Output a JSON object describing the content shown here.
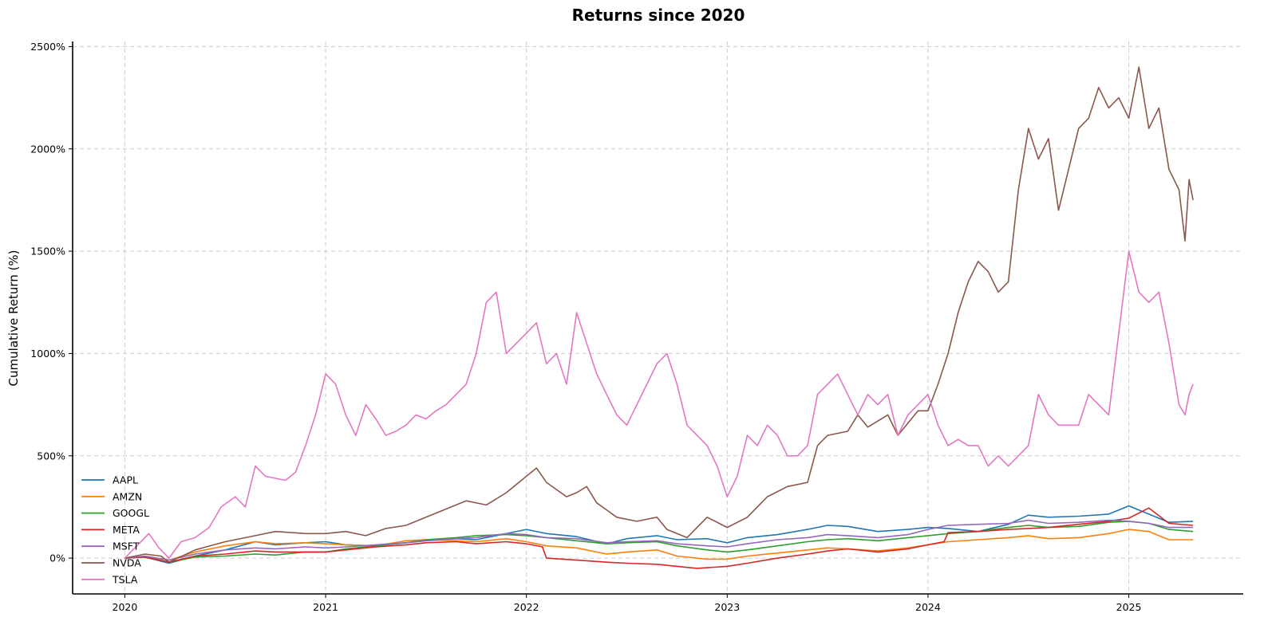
{
  "chart_data": {
    "type": "line",
    "title": "Returns since 2020",
    "xlabel": "",
    "ylabel": "Cumulative Return (%)",
    "x_ticks": [
      {
        "label": "2020",
        "value": 2020.0
      },
      {
        "label": "2021",
        "value": 2021.0
      },
      {
        "label": "2022",
        "value": 2022.0
      },
      {
        "label": "2023",
        "value": 2023.0
      },
      {
        "label": "2024",
        "value": 2024.0
      },
      {
        "label": "2025",
        "value": 2025.0
      }
    ],
    "y_ticks": [
      {
        "label": "0%",
        "value": 0
      },
      {
        "label": "500%",
        "value": 500
      },
      {
        "label": "1000%",
        "value": 1000
      },
      {
        "label": "1500%",
        "value": 1500
      },
      {
        "label": "2000%",
        "value": 2000
      },
      {
        "label": "2500%",
        "value": 2500
      }
    ],
    "xlim": [
      2019.74,
      2025.57
    ],
    "ylim": [
      -175,
      2525
    ],
    "grid": true,
    "legend_position": "lower-left",
    "series": [
      {
        "name": "AAPL",
        "color": "#1f77b4",
        "x": [
          2020.0,
          2020.1,
          2020.22,
          2020.35,
          2020.5,
          2020.65,
          2020.75,
          2020.9,
          2021.0,
          2021.1,
          2021.25,
          2021.4,
          2021.5,
          2021.65,
          2021.75,
          2021.9,
          2022.0,
          2022.1,
          2022.25,
          2022.4,
          2022.5,
          2022.65,
          2022.75,
          2022.9,
          2023.0,
          2023.1,
          2023.25,
          2023.4,
          2023.5,
          2023.6,
          2023.75,
          2023.9,
          2024.0,
          2024.1,
          2024.25,
          2024.4,
          2024.5,
          2024.6,
          2024.75,
          2024.9,
          2025.0,
          2025.1,
          2025.2,
          2025.32
        ],
        "y": [
          0,
          5,
          -25,
          10,
          40,
          80,
          65,
          75,
          80,
          65,
          60,
          75,
          85,
          95,
          90,
          120,
          140,
          120,
          105,
          70,
          95,
          110,
          90,
          95,
          75,
          100,
          115,
          140,
          160,
          155,
          130,
          140,
          150,
          145,
          130,
          165,
          210,
          200,
          205,
          215,
          255,
          215,
          175,
          180
        ]
      },
      {
        "name": "AMZN",
        "color": "#ff7f0e",
        "x": [
          2020.0,
          2020.1,
          2020.22,
          2020.35,
          2020.5,
          2020.65,
          2020.75,
          2020.9,
          2021.0,
          2021.1,
          2021.25,
          2021.4,
          2021.5,
          2021.65,
          2021.75,
          2021.9,
          2022.0,
          2022.1,
          2022.25,
          2022.4,
          2022.5,
          2022.65,
          2022.75,
          2022.9,
          2023.0,
          2023.1,
          2023.25,
          2023.4,
          2023.5,
          2023.6,
          2023.75,
          2023.9,
          2024.0,
          2024.1,
          2024.25,
          2024.4,
          2024.5,
          2024.6,
          2024.75,
          2024.9,
          2025.0,
          2025.1,
          2025.2,
          2025.32
        ],
        "y": [
          0,
          5,
          -10,
          30,
          60,
          80,
          70,
          75,
          70,
          65,
          60,
          85,
          90,
          85,
          80,
          95,
          80,
          60,
          50,
          20,
          30,
          40,
          10,
          -5,
          -5,
          10,
          25,
          40,
          50,
          45,
          35,
          50,
          65,
          80,
          90,
          100,
          110,
          95,
          100,
          120,
          140,
          130,
          90,
          90
        ]
      },
      {
        "name": "GOOGL",
        "color": "#2ca02c",
        "x": [
          2020.0,
          2020.1,
          2020.22,
          2020.35,
          2020.5,
          2020.65,
          2020.75,
          2020.9,
          2021.0,
          2021.1,
          2021.25,
          2021.4,
          2021.5,
          2021.65,
          2021.75,
          2021.9,
          2022.0,
          2022.1,
          2022.25,
          2022.4,
          2022.5,
          2022.65,
          2022.75,
          2022.9,
          2023.0,
          2023.1,
          2023.25,
          2023.4,
          2023.5,
          2023.6,
          2023.75,
          2023.9,
          2024.0,
          2024.1,
          2024.25,
          2024.4,
          2024.5,
          2024.6,
          2024.75,
          2024.9,
          2025.0,
          2025.1,
          2025.2,
          2025.32
        ],
        "y": [
          0,
          5,
          -20,
          5,
          10,
          20,
          15,
          30,
          30,
          45,
          60,
          75,
          90,
          100,
          110,
          115,
          110,
          100,
          85,
          70,
          75,
          80,
          60,
          40,
          30,
          40,
          60,
          80,
          90,
          95,
          85,
          100,
          110,
          120,
          130,
          150,
          160,
          150,
          155,
          175,
          180,
          170,
          140,
          130
        ]
      },
      {
        "name": "META",
        "color": "#d62728",
        "x": [
          2020.0,
          2020.1,
          2020.22,
          2020.35,
          2020.5,
          2020.65,
          2020.75,
          2020.9,
          2021.0,
          2021.1,
          2021.25,
          2021.4,
          2021.5,
          2021.65,
          2021.75,
          2021.9,
          2022.0,
          2022.08,
          2022.1,
          2022.25,
          2022.4,
          2022.5,
          2022.65,
          2022.75,
          2022.85,
          2023.0,
          2023.1,
          2023.25,
          2023.4,
          2023.5,
          2023.6,
          2023.75,
          2023.9,
          2024.0,
          2024.08,
          2024.1,
          2024.25,
          2024.4,
          2024.5,
          2024.6,
          2024.75,
          2024.9,
          2025.0,
          2025.1,
          2025.2,
          2025.32
        ],
        "y": [
          0,
          5,
          -20,
          10,
          20,
          35,
          30,
          30,
          30,
          40,
          55,
          65,
          75,
          80,
          70,
          80,
          70,
          55,
          0,
          -10,
          -20,
          -25,
          -30,
          -40,
          -50,
          -40,
          -25,
          0,
          20,
          35,
          45,
          30,
          45,
          65,
          80,
          125,
          130,
          140,
          145,
          150,
          165,
          180,
          195,
          245,
          170,
          160
        ]
      },
      {
        "name": "MSFT",
        "color": "#9467bd",
        "x": [
          2020.0,
          2020.1,
          2020.22,
          2020.35,
          2020.5,
          2020.65,
          2020.75,
          2020.9,
          2021.0,
          2021.1,
          2021.25,
          2021.4,
          2021.5,
          2021.65,
          2021.75,
          2021.9,
          2022.0,
          2022.1,
          2022.25,
          2022.4,
          2022.5,
          2022.65,
          2022.75,
          2022.9,
          2023.0,
          2023.1,
          2023.25,
          2023.4,
          2023.5,
          2023.6,
          2023.75,
          2023.9,
          2024.0,
          2024.1,
          2024.25,
          2024.4,
          2024.5,
          2024.6,
          2024.75,
          2024.9,
          2025.0,
          2025.1,
          2025.2,
          2025.32
        ],
        "y": [
          0,
          10,
          -10,
          20,
          40,
          50,
          45,
          55,
          50,
          55,
          65,
          75,
          85,
          95,
          100,
          120,
          115,
          100,
          95,
          75,
          80,
          85,
          70,
          60,
          55,
          70,
          90,
          100,
          115,
          110,
          100,
          115,
          140,
          160,
          165,
          170,
          185,
          170,
          175,
          185,
          180,
          170,
          150,
          150
        ]
      },
      {
        "name": "NVDA",
        "color": "#8c564b",
        "x": [
          2020.0,
          2020.1,
          2020.18,
          2020.22,
          2020.35,
          2020.5,
          2020.65,
          2020.75,
          2020.9,
          2021.0,
          2021.1,
          2021.2,
          2021.3,
          2021.4,
          2021.5,
          2021.6,
          2021.7,
          2021.8,
          2021.9,
          2022.0,
          2022.05,
          2022.1,
          2022.2,
          2022.25,
          2022.3,
          2022.35,
          2022.45,
          2022.55,
          2022.65,
          2022.7,
          2022.8,
          2022.9,
          2023.0,
          2023.1,
          2023.2,
          2023.3,
          2023.4,
          2023.45,
          2023.5,
          2023.6,
          2023.65,
          2023.7,
          2023.8,
          2023.85,
          2023.95,
          2024.0,
          2024.05,
          2024.1,
          2024.15,
          2024.2,
          2024.25,
          2024.3,
          2024.35,
          2024.4,
          2024.45,
          2024.5,
          2024.55,
          2024.6,
          2024.65,
          2024.7,
          2024.75,
          2024.8,
          2024.85,
          2024.9,
          2024.95,
          2025.0,
          2025.05,
          2025.1,
          2025.15,
          2025.2,
          2025.25,
          2025.28,
          2025.3,
          2025.32
        ],
        "y": [
          0,
          20,
          10,
          -20,
          40,
          80,
          110,
          130,
          120,
          120,
          130,
          110,
          145,
          160,
          200,
          240,
          280,
          260,
          320,
          400,
          440,
          370,
          300,
          320,
          350,
          270,
          200,
          180,
          200,
          140,
          100,
          200,
          150,
          200,
          300,
          350,
          370,
          550,
          600,
          620,
          700,
          640,
          700,
          600,
          720,
          720,
          850,
          1000,
          1200,
          1350,
          1450,
          1400,
          1300,
          1350,
          1800,
          2100,
          1950,
          2050,
          1700,
          1900,
          2100,
          2150,
          2300,
          2200,
          2250,
          2150,
          2400,
          2100,
          2200,
          1900,
          1800,
          1550,
          1850,
          1750
        ]
      },
      {
        "name": "TSLA",
        "color": "#e377c2",
        "x": [
          2020.0,
          2020.05,
          2020.12,
          2020.17,
          2020.22,
          2020.28,
          2020.35,
          2020.42,
          2020.48,
          2020.55,
          2020.6,
          2020.65,
          2020.7,
          2020.8,
          2020.85,
          2020.9,
          2020.95,
          2021.0,
          2021.05,
          2021.1,
          2021.15,
          2021.2,
          2021.25,
          2021.3,
          2021.35,
          2021.4,
          2021.45,
          2021.5,
          2021.55,
          2021.6,
          2021.65,
          2021.7,
          2021.75,
          2021.8,
          2021.85,
          2021.9,
          2022.0,
          2022.05,
          2022.1,
          2022.15,
          2022.2,
          2022.25,
          2022.3,
          2022.35,
          2022.4,
          2022.45,
          2022.5,
          2022.55,
          2022.6,
          2022.65,
          2022.7,
          2022.75,
          2022.8,
          2022.85,
          2022.9,
          2022.95,
          2023.0,
          2023.05,
          2023.1,
          2023.15,
          2023.2,
          2023.25,
          2023.3,
          2023.35,
          2023.4,
          2023.45,
          2023.5,
          2023.55,
          2023.6,
          2023.65,
          2023.7,
          2023.75,
          2023.8,
          2023.85,
          2023.9,
          2023.95,
          2024.0,
          2024.05,
          2024.1,
          2024.15,
          2024.2,
          2024.25,
          2024.3,
          2024.35,
          2024.4,
          2024.45,
          2024.5,
          2024.55,
          2024.6,
          2024.65,
          2024.7,
          2024.75,
          2024.8,
          2024.85,
          2024.9,
          2024.95,
          2025.0,
          2025.05,
          2025.1,
          2025.15,
          2025.2,
          2025.25,
          2025.28,
          2025.3,
          2025.32
        ],
        "y": [
          0,
          50,
          120,
          50,
          0,
          80,
          100,
          150,
          250,
          300,
          250,
          450,
          400,
          380,
          420,
          550,
          700,
          900,
          850,
          700,
          600,
          750,
          680,
          600,
          620,
          650,
          700,
          680,
          720,
          750,
          800,
          850,
          1000,
          1250,
          1300,
          1000,
          1100,
          1150,
          950,
          1000,
          850,
          1200,
          1050,
          900,
          800,
          700,
          650,
          750,
          850,
          950,
          1000,
          850,
          650,
          600,
          550,
          450,
          300,
          400,
          600,
          550,
          650,
          600,
          500,
          500,
          550,
          800,
          850,
          900,
          800,
          700,
          800,
          750,
          800,
          600,
          700,
          750,
          800,
          650,
          550,
          580,
          550,
          550,
          450,
          500,
          450,
          500,
          550,
          800,
          700,
          650,
          650,
          650,
          800,
          750,
          700,
          1100,
          1500,
          1300,
          1250,
          1300,
          1050,
          750,
          700,
          800,
          850
        ]
      }
    ]
  }
}
